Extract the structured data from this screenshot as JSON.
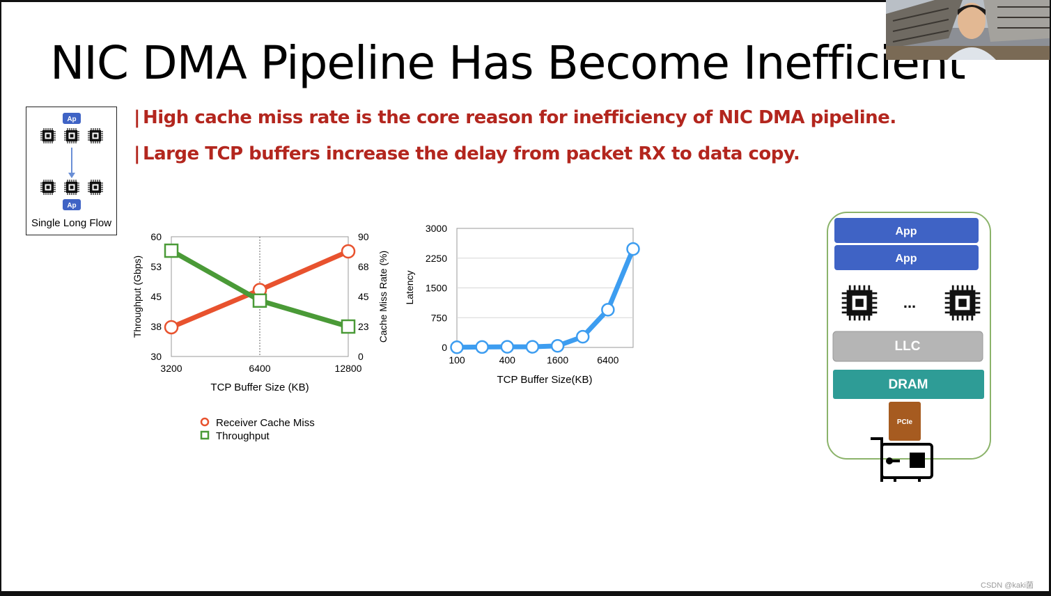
{
  "slide": {
    "title": "NIC DMA Pipeline Has Become Inefficient",
    "bullets": [
      "High cache miss rate is the core reason for inefficiency of NIC DMA pipeline.",
      "Large TCP buffers increase the delay from packet RX to data copy."
    ],
    "bullet_marker": "|",
    "accent_color": "#b3261e"
  },
  "flow_diagram": {
    "app_label": "Ap",
    "caption": "Single Long Flow"
  },
  "arch_diagram": {
    "app_labels": [
      "App",
      "App"
    ],
    "ellipsis": "...",
    "llc_label": "LLC",
    "dram_label": "DRAM",
    "pcie_label": "PCIe",
    "colors": {
      "app": "#3f63c5",
      "llc": "#b5b5b5",
      "dram": "#2e9c96",
      "pcie": "#a65b20",
      "border": "#8bb36a"
    }
  },
  "watermark": "CSDN @kaki菌",
  "chart_data": [
    {
      "type": "line",
      "title": "",
      "xlabel": "TCP Buffer Size (KB)",
      "ylabel": "Throughput (Gbps)",
      "y2label": "Cache Miss Rate (%)",
      "categories": [
        "3200",
        "6400",
        "12800"
      ],
      "yticks": [
        "30",
        "38",
        "45",
        "53",
        "60"
      ],
      "y2ticks": [
        "0",
        "23",
        "45",
        "68",
        "90"
      ],
      "ylim": [
        30,
        60
      ],
      "y2lim": [
        0,
        90
      ],
      "grid": "vertical dotted at 6400",
      "series": [
        {
          "name": "Receiver Cache Miss",
          "axis": "right",
          "color": "#e8522e",
          "marker": "circle",
          "values": [
            22,
            50,
            79
          ]
        },
        {
          "name": "Throughput",
          "axis": "left",
          "color": "#4a9a37",
          "marker": "square",
          "values": [
            56.5,
            44,
            37.5
          ]
        }
      ],
      "legend_position": "bottom-left"
    },
    {
      "type": "line",
      "title": "",
      "xlabel": "TCP Buffer Size(KB)",
      "ylabel": "Latency",
      "xtick_labels": [
        "100",
        "400",
        "1600",
        "6400"
      ],
      "yticks": [
        "0",
        "750",
        "1500",
        "2250",
        "3000"
      ],
      "ylim": [
        0,
        3000
      ],
      "grid": "horizontal",
      "series": [
        {
          "name": "Latency",
          "color": "#3d9df0",
          "marker": "circle",
          "x": [
            100,
            200,
            400,
            800,
            1600,
            3200,
            6400,
            12800
          ],
          "values": [
            5,
            10,
            15,
            15,
            40,
            270,
            950,
            2480
          ]
        }
      ]
    }
  ]
}
